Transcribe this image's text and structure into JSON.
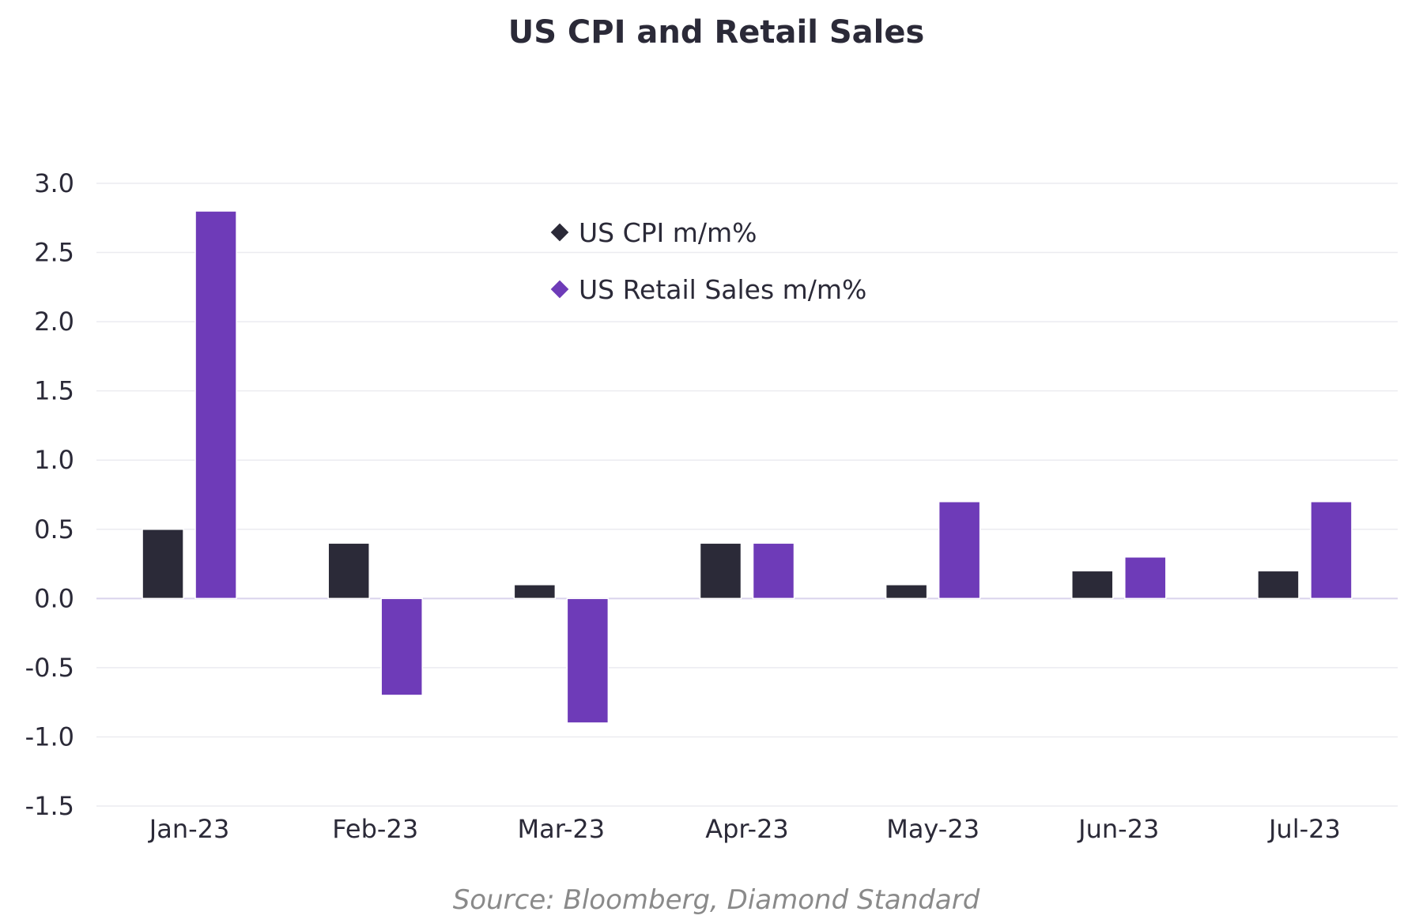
{
  "chart_data": {
    "type": "bar",
    "title": "US CPI and Retail Sales",
    "categories": [
      "Jan-23",
      "Feb-23",
      "Mar-23",
      "Apr-23",
      "May-23",
      "Jun-23",
      "Jul-23"
    ],
    "series": [
      {
        "name": "US CPI m/m%",
        "values": [
          0.5,
          0.4,
          0.1,
          0.4,
          0.1,
          0.2,
          0.2
        ],
        "color": "#2b2a38"
      },
      {
        "name": "US Retail Sales m/m%",
        "values": [
          2.8,
          -0.7,
          -0.9,
          0.4,
          0.7,
          0.3,
          0.7
        ],
        "color": "#6e3bb8"
      }
    ],
    "yticks": [
      "3.0",
      "2.5",
      "2.0",
      "1.5",
      "1.0",
      "0.5",
      "0.0",
      "-0.5",
      "-1.0",
      "-1.5"
    ],
    "ylim": [
      -1.5,
      3.0
    ],
    "xlabel": "",
    "ylabel": "",
    "grid": true,
    "legend_position": "top-center",
    "source": "Source: Bloomberg, Diamond Standard"
  },
  "colors": {
    "title": "#2b2a38",
    "text": "#2b2a38",
    "grid": "#ebebf0",
    "zero_line": "#d9d3ec",
    "source": "#8a8a8a"
  }
}
